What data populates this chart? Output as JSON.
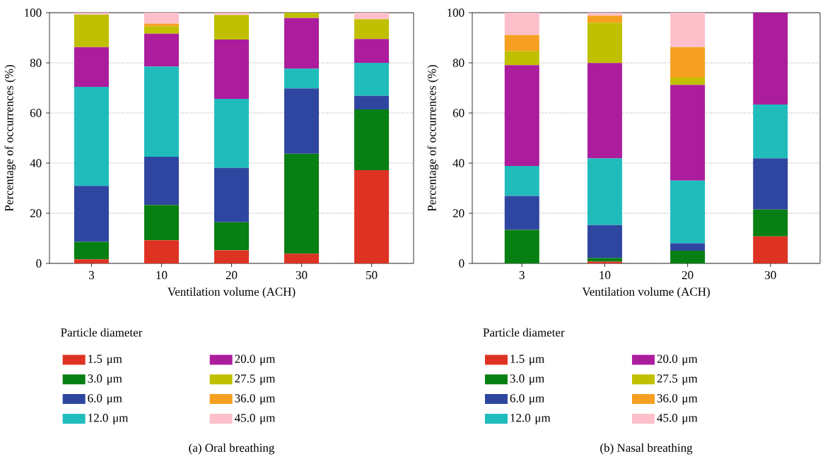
{
  "chart_data": [
    {
      "type": "bar",
      "stacked": true,
      "xlabel": "Ventilation volume (ACH)",
      "ylabel": "Percentage of occurrences (%)",
      "legend_title": "Particle diameter",
      "annotations": [
        "(a) Oral breathing"
      ],
      "categories": [
        "3",
        "10",
        "20",
        "30",
        "50"
      ],
      "ylim": [
        0,
        100
      ],
      "yticks": [
        0,
        20,
        40,
        60,
        80,
        100
      ],
      "grid": "y",
      "legend": "bottom",
      "series": [
        {
          "name": "1.5 μm",
          "color": "#de3323",
          "values": [
            1.6,
            9.2,
            5.2,
            3.9,
            37.2
          ]
        },
        {
          "name": "3.0 μm",
          "color": "#087f12",
          "values": [
            7.0,
            14.1,
            11.2,
            39.8,
            24.2
          ]
        },
        {
          "name": "6.0 μm",
          "color": "#2f46a0",
          "values": [
            22.3,
            19.2,
            21.7,
            26.1,
            5.4
          ]
        },
        {
          "name": "12.0 μm",
          "color": "#20bcbc",
          "values": [
            39.5,
            36.0,
            27.5,
            7.9,
            13.2
          ]
        },
        {
          "name": "20.0 μm",
          "color": "#ac1d9e",
          "values": [
            15.9,
            13.1,
            23.7,
            20.2,
            9.5
          ]
        },
        {
          "name": "27.5 μm",
          "color": "#c0c000",
          "values": [
            12.9,
            2.9,
            9.8,
            2.1,
            7.9
          ]
        },
        {
          "name": "36.0 μm",
          "color": "#f5a020",
          "values": [
            0,
            1.1,
            0,
            0,
            0
          ]
        },
        {
          "name": "45.0 μm",
          "color": "#fdc0cb",
          "values": [
            0.8,
            4.4,
            0.9,
            0,
            2.6
          ]
        }
      ]
    },
    {
      "type": "bar",
      "stacked": true,
      "xlabel": "Ventilation volume (ACH)",
      "ylabel": "Percentage of occurrences (%)",
      "legend_title": "Particle diameter",
      "annotations": [
        "(b) Nasal breathing"
      ],
      "categories": [
        "3",
        "10",
        "20",
        "30"
      ],
      "ylim": [
        0,
        100
      ],
      "yticks": [
        0,
        20,
        40,
        60,
        80,
        100
      ],
      "grid": "y",
      "legend": "bottom",
      "series": [
        {
          "name": "1.5 μm",
          "color": "#de3323",
          "values": [
            0,
            0.7,
            0,
            10.8
          ]
        },
        {
          "name": "3.0 μm",
          "color": "#087f12",
          "values": [
            13.4,
            1.5,
            5.1,
            10.7
          ]
        },
        {
          "name": "6.0 μm",
          "color": "#2f46a0",
          "values": [
            13.5,
            13.1,
            2.9,
            20.4
          ]
        },
        {
          "name": "12.0 μm",
          "color": "#20bcbc",
          "values": [
            12.0,
            26.6,
            25.0,
            21.5
          ]
        },
        {
          "name": "20.0 μm",
          "color": "#ac1d9e",
          "values": [
            40.2,
            38.0,
            38.2,
            36.6
          ]
        },
        {
          "name": "27.5 μm",
          "color": "#c0c000",
          "values": [
            5.6,
            16.1,
            2.9,
            0
          ]
        },
        {
          "name": "36.0 μm",
          "color": "#f5a020",
          "values": [
            6.4,
            2.8,
            12.2,
            0
          ]
        },
        {
          "name": "45.0 μm",
          "color": "#fdc0cb",
          "values": [
            8.9,
            1.2,
            13.7,
            0
          ]
        }
      ]
    }
  ]
}
